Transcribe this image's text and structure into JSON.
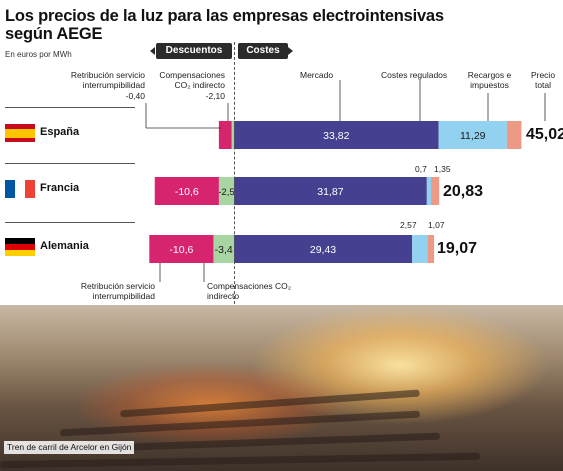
{
  "title": "Los precios de la luz para las empresas electrointensivas según AEGE",
  "subtitle": "En euros por MWh",
  "sections": {
    "discounts": "Descuentos",
    "costs": "Costes"
  },
  "headers": {
    "retribucion": "Retribución servicio interrumpibilidad",
    "retribucion_value": "-0,40",
    "compensaciones": "Compensaciones CO₂ indirecto",
    "compensaciones_value": "-2,10",
    "mercado": "Mercado",
    "costes_regulados": "Costes regulados",
    "recargos": "Recargos e impuestos",
    "precio_total": "Precio total"
  },
  "bottom_labels": {
    "retribucion": "Retribución servicio interrumpibilidad",
    "compensaciones": "Compensaciones CO₂ indirecto"
  },
  "photo_caption": "Tren de carril de Arcelor en Gijón",
  "colors": {
    "retribucion": "#a8d5a2",
    "compensaciones": "#d6246e",
    "mercado": "#45408f",
    "costes_regulados": "#92d2f0",
    "recargos": "#ec9a86"
  },
  "flags": {
    "España": [
      "#c60b1e",
      "#ffc400",
      "#c60b1e"
    ],
    "Francia": [
      "#0055a4",
      "#ffffff",
      "#ef4135"
    ],
    "Alemania": [
      "#000000",
      "#dd0000",
      "#ffce00"
    ]
  },
  "chart_data": {
    "type": "bar",
    "title": "Los precios de la luz para las empresas electrointensivas según AEGE",
    "unit": "euros por MWh",
    "categories": [
      "España",
      "Francia",
      "Alemania"
    ],
    "series": [
      {
        "name": "Retribución servicio interrumpibilidad",
        "values": [
          -0.4,
          -2.5,
          -3.4
        ],
        "labels": [
          "",
          "-2,5",
          "-3,4"
        ]
      },
      {
        "name": "Compensaciones CO₂ indirecto",
        "values": [
          -2.1,
          -10.6,
          -10.6
        ],
        "labels": [
          "",
          "-10,6",
          "-10,6"
        ]
      },
      {
        "name": "Mercado",
        "values": [
          33.82,
          31.87,
          29.43
        ],
        "labels": [
          "33,82",
          "31,87",
          "29,43"
        ]
      },
      {
        "name": "Costes regulados",
        "values": [
          11.29,
          0.7,
          2.57
        ],
        "labels": [
          "11,29",
          "0,7",
          "2,57"
        ]
      },
      {
        "name": "Recargos e impuestos",
        "values": [
          2.4,
          1.35,
          1.07
        ],
        "labels": [
          "2,4",
          "1,35",
          "1,07"
        ]
      }
    ],
    "totals": [
      "45,02",
      "20,83",
      "19,07"
    ],
    "stacked": true
  }
}
